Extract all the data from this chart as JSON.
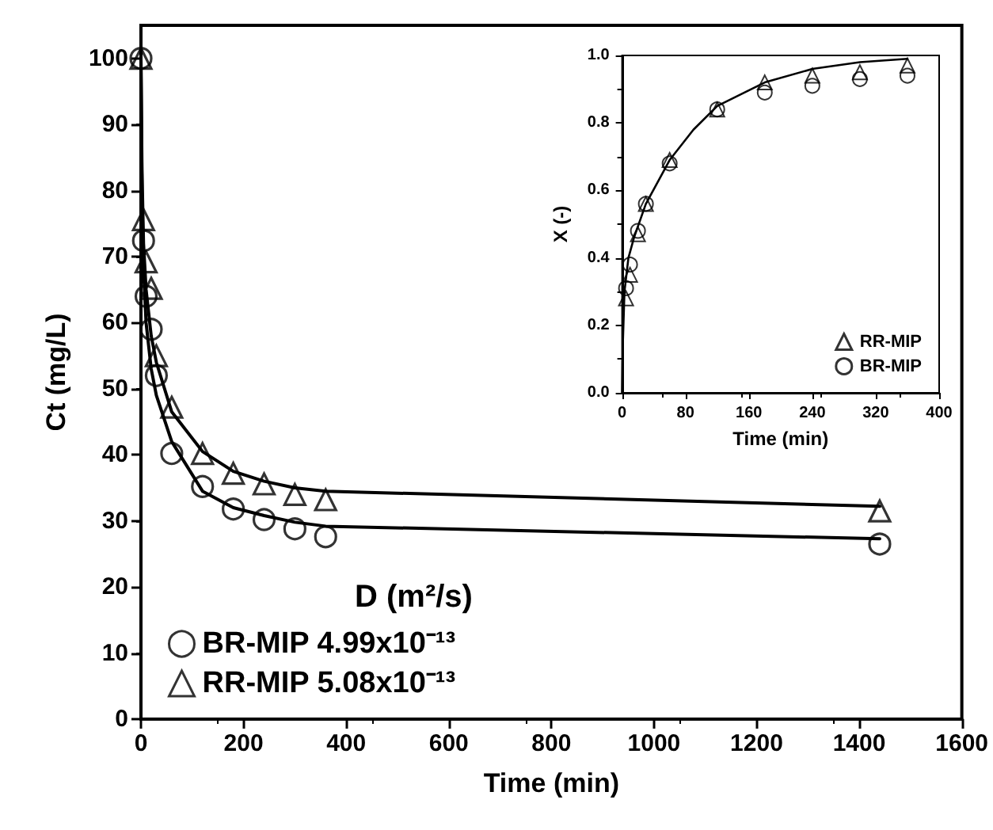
{
  "chart_data": [
    {
      "type": "scatter",
      "xlabel": "Time (min)",
      "ylabel": "Ct (mg/L)",
      "legend_title": "D (m²/s)",
      "legend": "bottom left",
      "xlim": [
        0,
        1600
      ],
      "xticks": [
        0,
        200,
        400,
        600,
        800,
        1000,
        1200,
        1400,
        1600
      ],
      "ylim": [
        0,
        105
      ],
      "yticks": [
        0,
        10,
        20,
        30,
        40,
        50,
        60,
        70,
        80,
        90,
        100
      ],
      "grid": false,
      "series": [
        {
          "name": "BR-MIP 4.99x10⁻¹³",
          "color": "#000000",
          "marker": "circle",
          "x": [
            0,
            5,
            10,
            20,
            30,
            60,
            120,
            180,
            240,
            300,
            360,
            1440
          ],
          "values": [
            100,
            72.4,
            64,
            59,
            52,
            40.2,
            35.2,
            31.8,
            30.2,
            28.8,
            27.6,
            26.5
          ]
        },
        {
          "name": "RR-MIP 5.08x10⁻¹³",
          "color": "#000000",
          "marker": "triangle",
          "x": [
            0,
            5,
            10,
            20,
            30,
            60,
            120,
            180,
            240,
            300,
            360,
            1440
          ],
          "values": [
            100,
            75.6,
            69.2,
            65.2,
            55,
            47.2,
            40.2,
            37.2,
            35.6,
            34,
            33.2,
            31.5
          ]
        },
        {
          "type": "line",
          "color": "#000000",
          "marker": "none",
          "x": [
            0,
            2,
            5,
            10,
            20,
            30,
            60,
            120,
            180,
            240,
            300,
            360,
            1440
          ],
          "values": [
            100,
            80,
            68,
            60,
            53,
            49,
            42,
            34.5,
            32,
            30.8,
            29.8,
            29.2,
            27.3
          ]
        },
        {
          "type": "line",
          "color": "#000000",
          "marker": "none",
          "x": [
            0,
            2,
            5,
            10,
            20,
            30,
            60,
            120,
            180,
            240,
            300,
            360,
            1440
          ],
          "values": [
            100,
            83,
            72,
            65,
            58,
            54,
            46.5,
            40.5,
            37.5,
            36,
            35,
            34.5,
            32.2
          ]
        }
      ]
    },
    {
      "type": "scatter",
      "xlabel": "Time (min)",
      "ylabel": "X (-)",
      "legend": "bottom right",
      "xlim": [
        0,
        400
      ],
      "xticks": [
        0,
        80,
        160,
        240,
        320,
        400
      ],
      "ylim": [
        0,
        1
      ],
      "yticks": [
        {
          "value": 0,
          "label": "0.0"
        },
        {
          "value": 0.2,
          "label": "0.2"
        },
        {
          "value": 0.4,
          "label": "0.4"
        },
        {
          "value": 0.6,
          "label": "0.6"
        },
        {
          "value": 0.8,
          "label": "0.8"
        },
        {
          "value": 1,
          "label": "1.0"
        }
      ],
      "grid": false,
      "series": [
        {
          "name": "RR-MIP",
          "color": "#000000",
          "marker": "triangle",
          "x": [
            5,
            10,
            20,
            30,
            60,
            120,
            180,
            240,
            300,
            360
          ],
          "values": [
            0.28,
            0.35,
            0.47,
            0.56,
            0.69,
            0.84,
            0.92,
            0.94,
            0.95,
            0.97
          ]
        },
        {
          "name": "BR-MIP",
          "color": "#000000",
          "marker": "circle",
          "x": [
            5,
            10,
            20,
            30,
            60,
            120,
            180,
            240,
            300,
            360
          ],
          "values": [
            0.31,
            0.38,
            0.48,
            0.56,
            0.68,
            0.84,
            0.89,
            0.91,
            0.93,
            0.94
          ]
        },
        {
          "type": "line",
          "color": "#000000",
          "marker": "none",
          "x": [
            0,
            1,
            3,
            8,
            15,
            30,
            60,
            90,
            120,
            180,
            240,
            300,
            360
          ],
          "values": [
            0,
            0.15,
            0.3,
            0.4,
            0.46,
            0.56,
            0.69,
            0.78,
            0.85,
            0.92,
            0.96,
            0.98,
            0.99
          ]
        }
      ]
    }
  ]
}
